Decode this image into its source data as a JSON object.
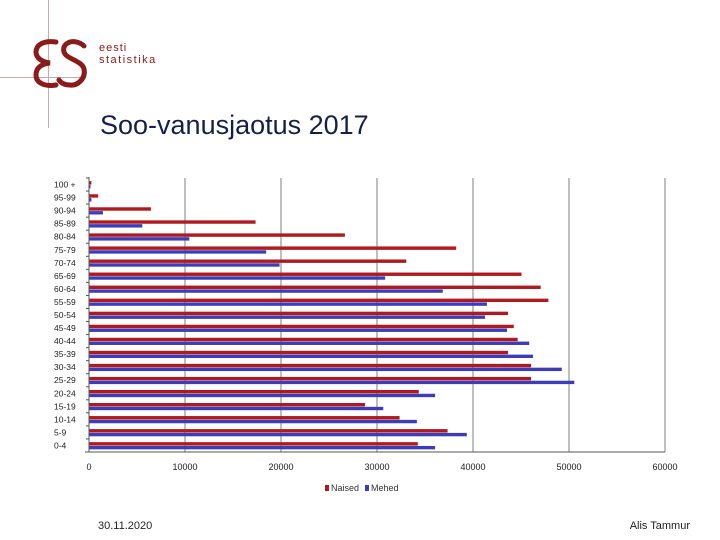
{
  "logo": {
    "mark": "ES",
    "line1": "eesti",
    "line2": "statistika"
  },
  "title": "Soo-vanusjaotus 2017",
  "footer": {
    "date": "30.11.2020",
    "author": "Alis Tammur"
  },
  "colors": {
    "naised": "#b0191e",
    "mehed": "#3d3dbb",
    "grid": "#7f7f7f",
    "brand": "#8b1a1a"
  },
  "chart_data": {
    "type": "bar",
    "orientation": "horizontal",
    "title": "Soo-vanusjaotus 2017",
    "categories": [
      "100 +",
      "95-99",
      "90-94",
      "85-89",
      "80-84",
      "75-79",
      "70-74",
      "65-69",
      "60-64",
      "55-59",
      "50-54",
      "45-49",
      "40-44",
      "35-39",
      "30-34",
      "25-29",
      "20-24",
      "15-19",
      "10-14",
      "5-9",
      "0-4"
    ],
    "series": [
      {
        "name": "Naised",
        "color": "#b0191e",
        "values": [
          200,
          900,
          6400,
          17300,
          26600,
          38200,
          33000,
          45000,
          47000,
          47800,
          43600,
          44200,
          44600,
          43600,
          46000,
          46000,
          34300,
          28700,
          32300,
          37300,
          34200
        ]
      },
      {
        "name": "Mehed",
        "color": "#3d3dbb",
        "values": [
          100,
          200,
          1400,
          5500,
          10400,
          18400,
          19800,
          30800,
          36800,
          41400,
          41200,
          43500,
          45800,
          46200,
          49200,
          50500,
          36000,
          30600,
          34100,
          39300,
          36000
        ]
      }
    ],
    "xlim": [
      0,
      60000
    ],
    "xticks": [
      0,
      10000,
      20000,
      30000,
      40000,
      50000,
      60000
    ],
    "legend": {
      "position": "bottom",
      "labels": [
        "Naised",
        "Mehed"
      ]
    },
    "grid": true
  }
}
